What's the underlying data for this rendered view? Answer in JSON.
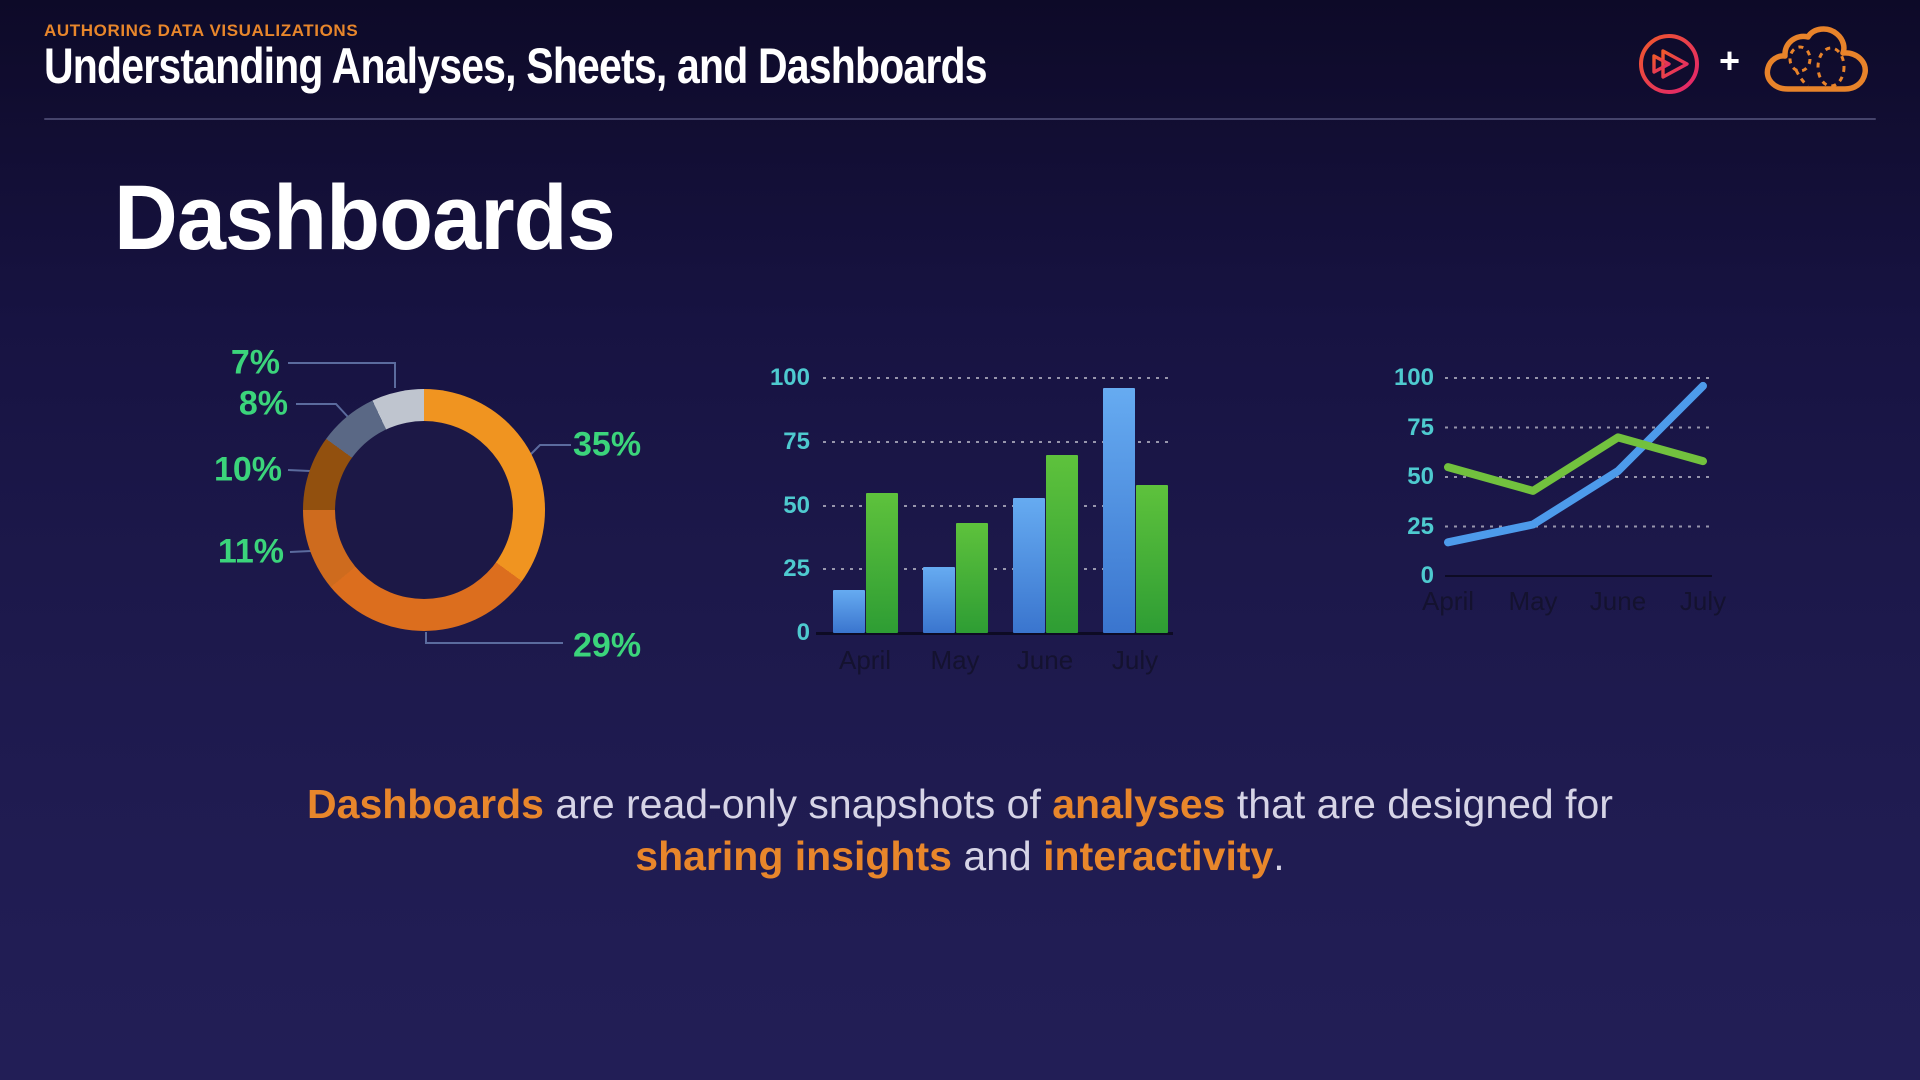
{
  "header": {
    "eyebrow": "AUTHORING DATA VISUALIZATIONS",
    "title": "Understanding Analyses, Sheets, and Dashboards",
    "plus": "+"
  },
  "slide": {
    "heading": "Dashboards"
  },
  "caption": {
    "line1": [
      {
        "text": "Dashboards",
        "emphasis": true
      },
      {
        "text": " are read-only snapshots of ",
        "emphasis": false
      },
      {
        "text": "analyses",
        "emphasis": true
      },
      {
        "text": " that are designed for",
        "emphasis": false
      }
    ],
    "line2": [
      {
        "text": "sharing insights",
        "emphasis": true
      },
      {
        "text": " and ",
        "emphasis": false
      },
      {
        "text": "interactivity",
        "emphasis": true
      },
      {
        "text": ".",
        "emphasis": false
      }
    ]
  },
  "colors": {
    "accent_orange": "#e8862b",
    "donut_label_green": "#3bd47b",
    "axis_tick_teal": "#4ecacf",
    "axis_label_dark": "#14122f",
    "leader_line": "#5b6b9e",
    "bar_blue": "#4a8fdf",
    "bar_green": "#46b038",
    "line_blue": "#4d9beb",
    "line_green": "#72c13e",
    "divider": "#45436b",
    "caption_light": "#d6d4e6"
  },
  "chart_data": [
    {
      "type": "pie",
      "subtype": "donut",
      "title": "",
      "slices": [
        {
          "label": "35%",
          "value": 35,
          "color": "#f09420"
        },
        {
          "label": "29%",
          "value": 29,
          "color": "#dc6e1e"
        },
        {
          "label": "11%",
          "value": 11,
          "color": "#ce6b1e"
        },
        {
          "label": "10%",
          "value": 10,
          "color": "#92500e"
        },
        {
          "label": "8%",
          "value": 8,
          "color": "#5a6885"
        },
        {
          "label": "7%",
          "value": 7,
          "color": "#bfc5cf"
        }
      ],
      "start_angle_deg": 0,
      "direction": "clockwise",
      "legend_position": "labels-with-leader-lines"
    },
    {
      "type": "bar",
      "title": "",
      "categories": [
        "April",
        "May",
        "June",
        "July"
      ],
      "series": [
        {
          "name": "blue",
          "color": "#4a8fdf",
          "values": [
            17,
            26,
            53,
            96
          ]
        },
        {
          "name": "green",
          "color": "#46b038",
          "values": [
            55,
            43,
            70,
            58
          ]
        }
      ],
      "yticks": [
        0,
        25,
        50,
        75,
        100
      ],
      "ylim": [
        0,
        100
      ],
      "grid": "dotted-horizontal",
      "xlabel": "",
      "ylabel": ""
    },
    {
      "type": "line",
      "title": "",
      "categories": [
        "April",
        "May",
        "June",
        "July"
      ],
      "series": [
        {
          "name": "blue",
          "color": "#4d9beb",
          "values": [
            17,
            26,
            53,
            96
          ]
        },
        {
          "name": "green",
          "color": "#72c13e",
          "values": [
            55,
            43,
            70,
            58
          ]
        }
      ],
      "yticks": [
        0,
        25,
        50,
        75,
        100
      ],
      "ylim": [
        0,
        100
      ],
      "grid": "dotted-horizontal",
      "xlabel": "",
      "ylabel": ""
    }
  ]
}
